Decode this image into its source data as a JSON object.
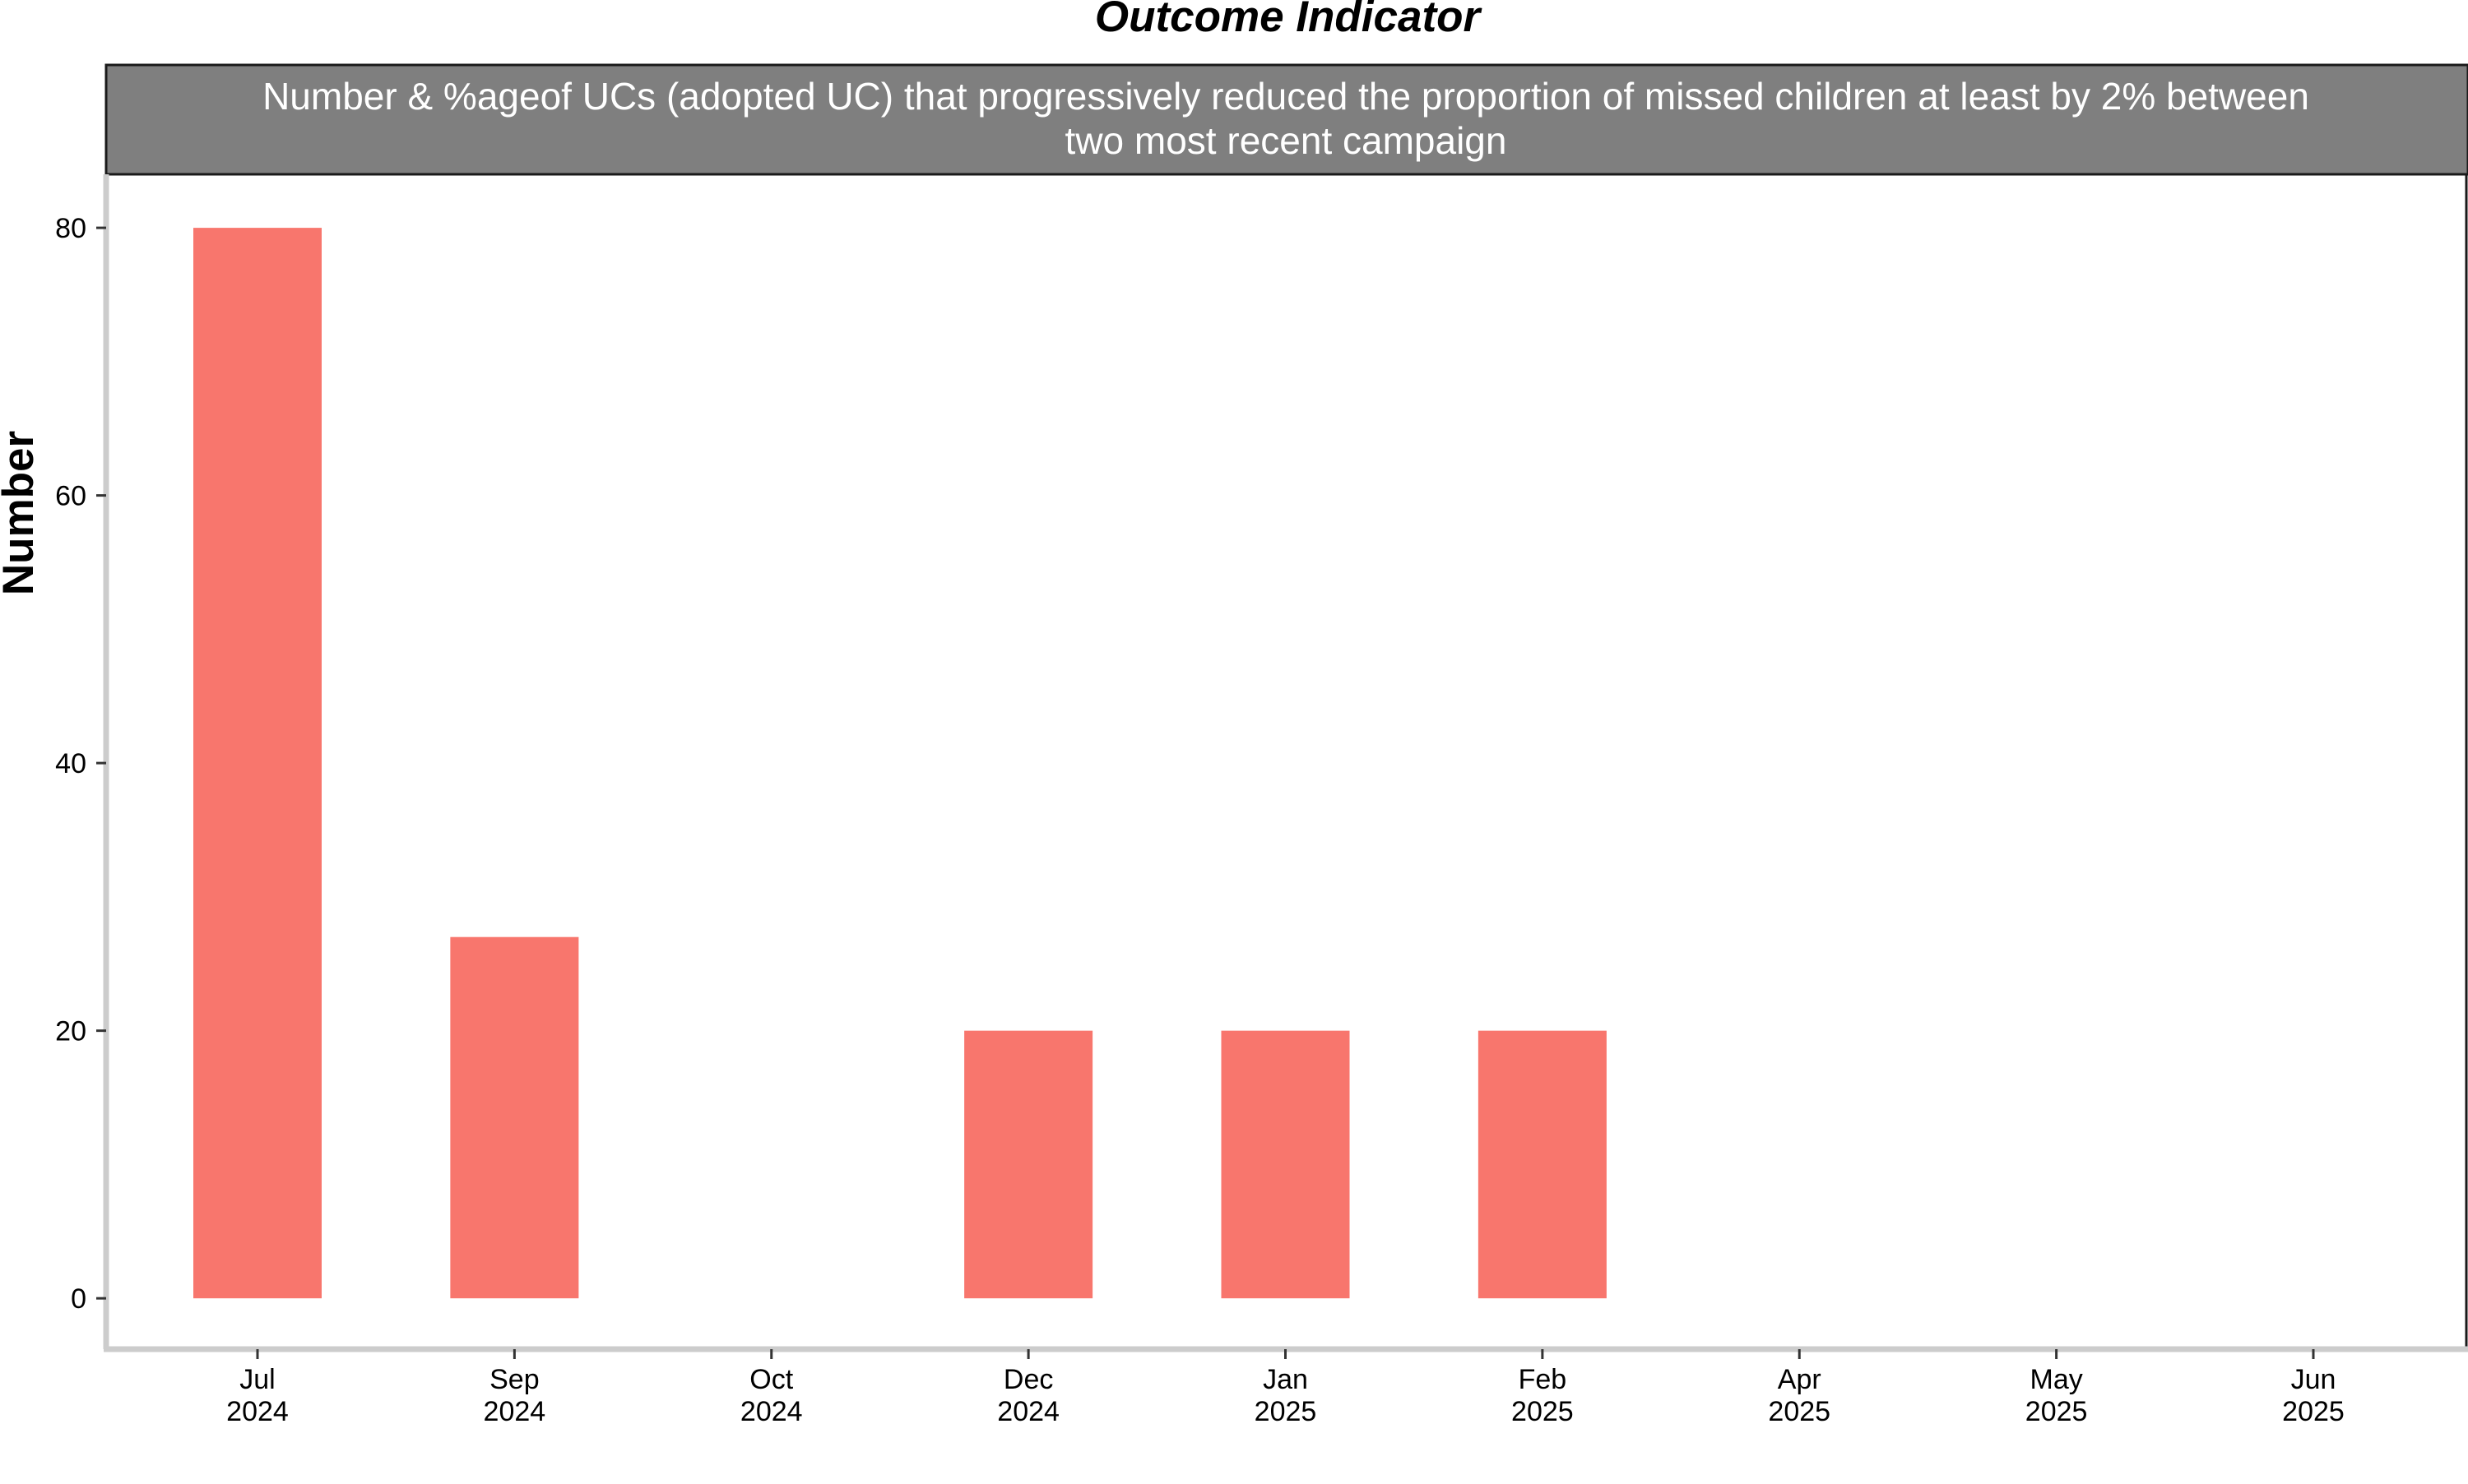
{
  "chart_data": {
    "type": "bar",
    "title": "Outcome Indicator",
    "facet_label_lines": [
      "Number & %ageof UCs (adopted UC) that progressively reduced the proportion of missed children at least by 2% between",
      "two most recent campaign"
    ],
    "xlabel": "",
    "ylabel": "Number",
    "categories": [
      "Jul 2024",
      "Sep 2024",
      "Oct 2024",
      "Dec 2024",
      "Jan 2025",
      "Feb 2025",
      "Apr 2025",
      "May 2025",
      "Jun 2025"
    ],
    "tick_labels": [
      [
        "Jul",
        "2024"
      ],
      [
        "Sep",
        "2024"
      ],
      [
        "Oct",
        "2024"
      ],
      [
        "Dec",
        "2024"
      ],
      [
        "Jan",
        "2025"
      ],
      [
        "Feb",
        "2025"
      ],
      [
        "Apr",
        "2025"
      ],
      [
        "May",
        "2025"
      ],
      [
        "Jun",
        "2025"
      ]
    ],
    "values": [
      80,
      27,
      null,
      20,
      20,
      20,
      null,
      null,
      null
    ],
    "ylim": [
      -3.8,
      84
    ],
    "yticks": [
      0,
      20,
      40,
      60,
      80
    ],
    "grid": false,
    "legend": "none",
    "bar_color": "#F8766D",
    "strip_color": "#7F7F7F",
    "axis_color": "#CCCCCC"
  }
}
